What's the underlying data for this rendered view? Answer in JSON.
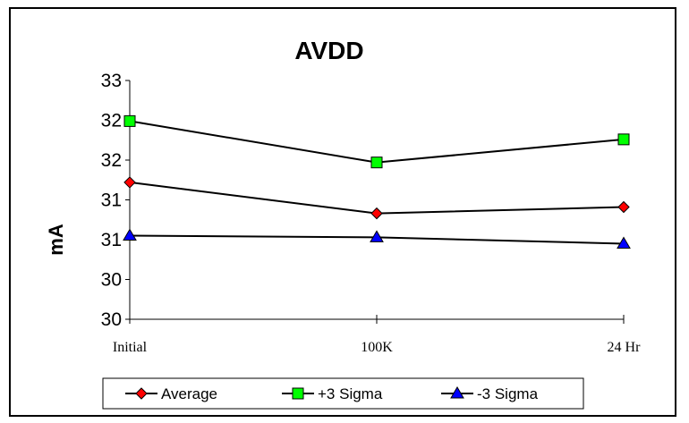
{
  "chart_data": {
    "type": "line",
    "title": "AVDD",
    "xlabel": "",
    "ylabel": "mA",
    "categories": [
      "Initial",
      "100K",
      "24 Hr"
    ],
    "ylim": [
      29.75,
      32.75
    ],
    "ytick_values": [
      29.75,
      30.25,
      30.75,
      31.25,
      31.75,
      32.25,
      32.75
    ],
    "ytick_labels": [
      "30",
      "30",
      "31",
      "31",
      "32",
      "32",
      "33"
    ],
    "grid": false,
    "legend_position": "bottom",
    "series": [
      {
        "name": "Average",
        "values": [
          31.47,
          31.08,
          31.16
        ],
        "color": "#ff0000",
        "marker": "diamond"
      },
      {
        "name": "+3 Sigma",
        "values": [
          32.24,
          31.72,
          32.01
        ],
        "color": "#00ff00",
        "marker": "square"
      },
      {
        "name": "-3 Sigma",
        "values": [
          30.8,
          30.78,
          30.7
        ],
        "color": "#0000ff",
        "marker": "triangle"
      }
    ]
  }
}
